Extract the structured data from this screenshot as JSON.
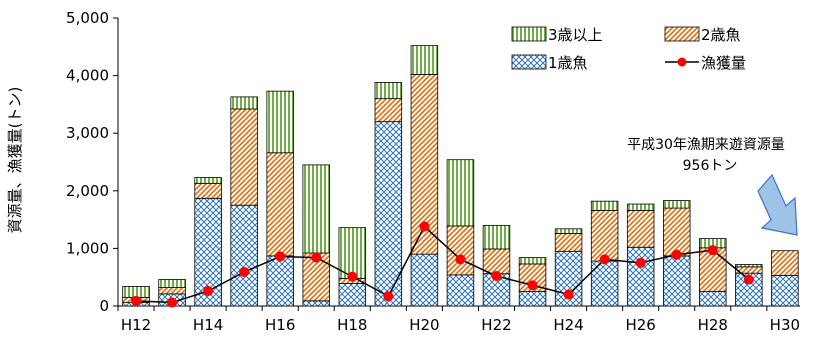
{
  "chart_data": {
    "type": "bar",
    "ylabel": "資源量、漁獲量(トン)",
    "ylim": [
      0,
      5000
    ],
    "yticks": [
      "0",
      "1,000",
      "2,000",
      "3,000",
      "4,000",
      "5,000"
    ],
    "ytick_values": [
      0,
      1000,
      2000,
      3000,
      4000,
      5000
    ],
    "categories": [
      "H12",
      "H13",
      "H14",
      "H15",
      "H16",
      "H17",
      "H18",
      "H19",
      "H20",
      "H21",
      "H22",
      "H23",
      "H24",
      "H25",
      "H26",
      "H27",
      "H28",
      "H29",
      "H30"
    ],
    "x_tick_labels": [
      "H12",
      "H14",
      "H16",
      "H18",
      "H20",
      "H22",
      "H24",
      "H26",
      "H28",
      "H30"
    ],
    "series": [
      {
        "name": "1歳魚",
        "kind": "bar",
        "values": [
          60,
          210,
          1870,
          1750,
          870,
          90,
          390,
          3200,
          900,
          540,
          560,
          250,
          950,
          780,
          1020,
          870,
          250,
          570,
          530
        ]
      },
      {
        "name": "2歳魚",
        "kind": "bar",
        "values": [
          90,
          110,
          260,
          1670,
          1790,
          830,
          90,
          400,
          3120,
          850,
          430,
          480,
          310,
          880,
          640,
          830,
          760,
          110,
          430
        ]
      },
      {
        "name": "3歳以上",
        "kind": "bar",
        "values": [
          190,
          140,
          100,
          210,
          1070,
          1530,
          880,
          280,
          500,
          1150,
          410,
          110,
          80,
          160,
          110,
          130,
          160,
          40,
          0
        ]
      },
      {
        "name": "漁獲量",
        "kind": "line",
        "values": [
          90,
          60,
          260,
          590,
          860,
          840,
          510,
          170,
          1380,
          810,
          520,
          360,
          200,
          810,
          750,
          890,
          970,
          460,
          null
        ]
      }
    ],
    "annotation": {
      "line1": "平成30年漁期来遊資源量",
      "line2": "956トン"
    },
    "legend": {
      "placement": "top-right",
      "entries": [
        "3歳以上",
        "2歳魚",
        "1歳魚",
        "漁獲量"
      ]
    },
    "grid": false,
    "colors": {
      "age1": "#2e75b6",
      "age2": "#e46c0a",
      "age3": "#70ad47",
      "catch_line": "#000000",
      "catch_marker": "#ff0000",
      "arrow_fill": "#9dc3e6",
      "arrow_stroke": "#4472c4"
    }
  }
}
